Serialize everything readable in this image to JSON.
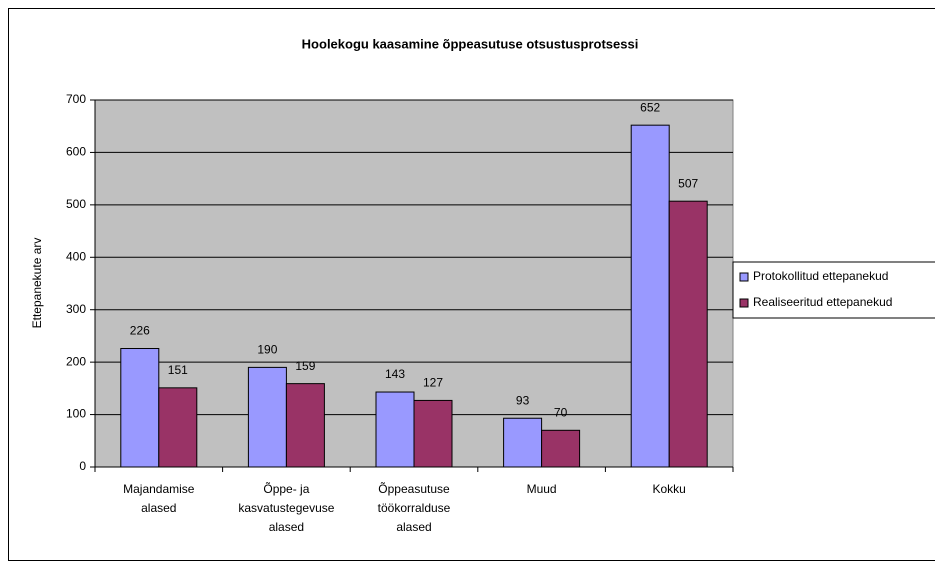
{
  "chart_data": {
    "type": "bar",
    "title": "Hoolekogu kaasamine õppeasutuse otsustusprotsessi",
    "y_label": "Ettepanekute arv",
    "categories": [
      "Majandamise alased",
      "Õppe- ja kasvatustegevuse alased",
      "Õppeasutuse töökorralduse alased",
      "Muud",
      "Kokku"
    ],
    "series": [
      {
        "name": "Protokollitud ettepanekud",
        "color": "#9999ff",
        "values": [
          226,
          190,
          143,
          93,
          652
        ]
      },
      {
        "name": "Realiseeritud ettepanekud",
        "color": "#993366",
        "values": [
          151,
          159,
          127,
          70,
          507
        ]
      }
    ],
    "ylim": [
      0,
      700
    ],
    "yticks": [
      0,
      100,
      200,
      300,
      400,
      500,
      600,
      700
    ],
    "grid": true,
    "plot_background": "#c0c0c0",
    "legend": "right"
  }
}
